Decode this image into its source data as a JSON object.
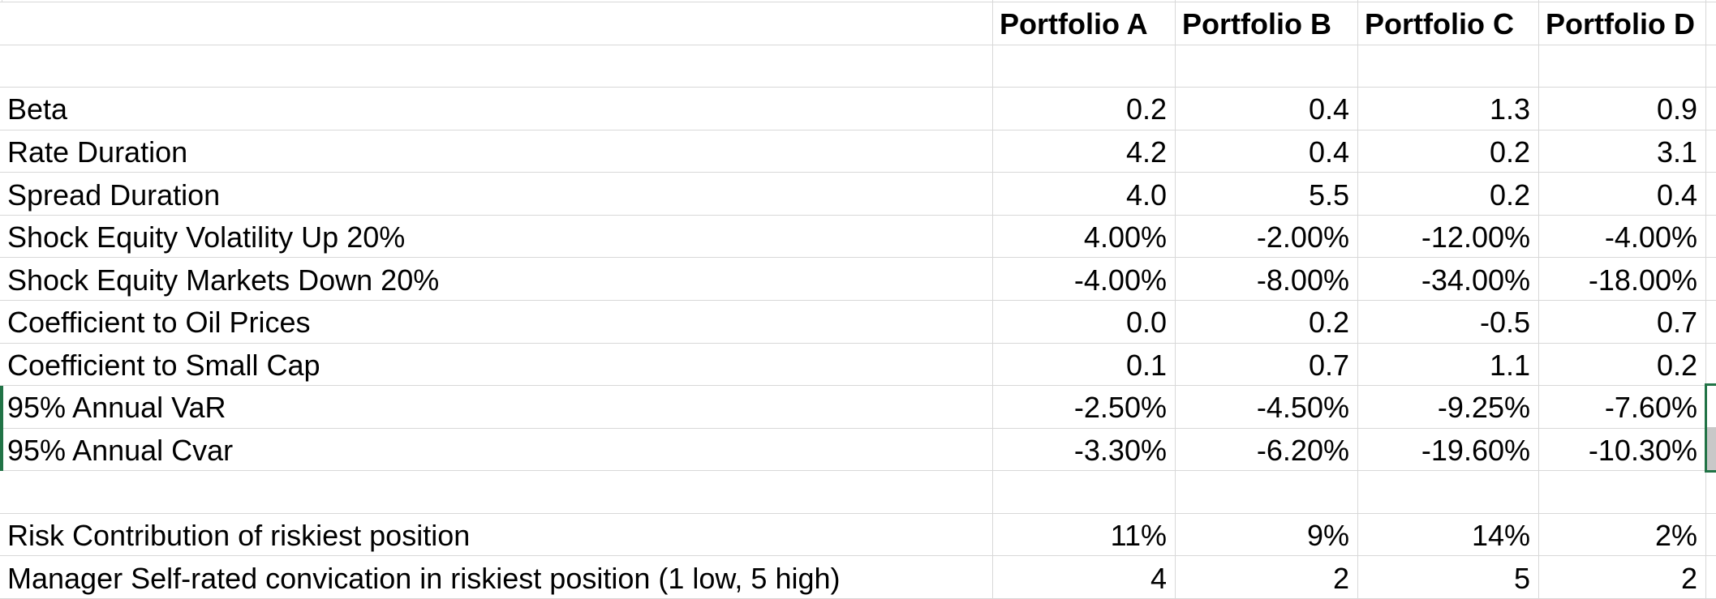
{
  "app": {
    "type": "spreadsheet-grid"
  },
  "colors": {
    "gridline": "#d8d8d8",
    "selection_border_green": "#217346",
    "selected_cell_fill_gray": "#c8c8c8",
    "background": "#ffffff",
    "text": "#000000"
  },
  "columns": {
    "spacer": "",
    "a": "Portfolio A",
    "b": "Portfolio B",
    "c": "Portfolio C",
    "d": "Portfolio D"
  },
  "rows": [
    {
      "label": "",
      "values": [
        "",
        "",
        "",
        ""
      ]
    },
    {
      "label": "Beta",
      "values": [
        "0.2",
        "0.4",
        "1.3",
        "0.9"
      ]
    },
    {
      "label": "Rate Duration",
      "values": [
        "4.2",
        "0.4",
        "0.2",
        "3.1"
      ]
    },
    {
      "label": "Spread Duration",
      "values": [
        "4.0",
        "5.5",
        "0.2",
        "0.4"
      ]
    },
    {
      "label": "Shock Equity Volatility Up 20%",
      "values": [
        "4.00%",
        "-2.00%",
        "-12.00%",
        "-4.00%"
      ]
    },
    {
      "label": "Shock Equity Markets Down 20%",
      "values": [
        "-4.00%",
        "-8.00%",
        "-34.00%",
        "-18.00%"
      ]
    },
    {
      "label": "Coefficient to Oil Prices",
      "values": [
        "0.0",
        "0.2",
        "-0.5",
        "0.7"
      ]
    },
    {
      "label": "Coefficient to Small Cap",
      "values": [
        "0.1",
        "0.7",
        "1.1",
        "0.2"
      ]
    },
    {
      "label": "95% Annual VaR",
      "values": [
        "-2.50%",
        "-4.50%",
        "-9.25%",
        "-7.60%"
      ]
    },
    {
      "label": "95% Annual Cvar",
      "values": [
        "-3.30%",
        "-6.20%",
        "-19.60%",
        "-10.30%"
      ]
    },
    {
      "label": "",
      "values": [
        "",
        "",
        "",
        ""
      ]
    },
    {
      "label": "Risk Contribution of riskiest position",
      "values": [
        "11%",
        "9%",
        "14%",
        "2%"
      ]
    },
    {
      "label": "Manager Self-rated convication in riskiest position (1 low, 5 high)",
      "values": [
        "4",
        "2",
        "5",
        "2"
      ]
    }
  ]
}
